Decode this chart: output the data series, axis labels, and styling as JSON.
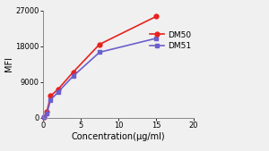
{
  "dm50_x": [
    0.1,
    0.5,
    1,
    2,
    4,
    7.5,
    15
  ],
  "dm50_y": [
    200,
    1500,
    5500,
    7200,
    11500,
    18500,
    25500
  ],
  "dm51_x": [
    0.1,
    0.5,
    1,
    2,
    4,
    7.5,
    15
  ],
  "dm51_y": [
    200,
    1000,
    4500,
    6500,
    10500,
    16500,
    20000
  ],
  "dm50_color": "#e8211d",
  "dm51_color": "#6b5fcc",
  "dm50_label": "DM50",
  "dm51_label": "DM51",
  "xlabel": "Concentration(μg/ml)",
  "ylabel": "MFI",
  "xlim": [
    0,
    20
  ],
  "ylim": [
    0,
    27000
  ],
  "yticks": [
    0,
    9000,
    18000,
    27000
  ],
  "xticks": [
    0,
    5,
    10,
    15,
    20
  ],
  "legend_fontsize": 6.5,
  "axis_label_fontsize": 7,
  "tick_fontsize": 6,
  "line_width": 1.2,
  "marker_size": 3.5,
  "fig_bg_color": "#f0f0f0",
  "plot_bg_color": "#f0f0f0"
}
